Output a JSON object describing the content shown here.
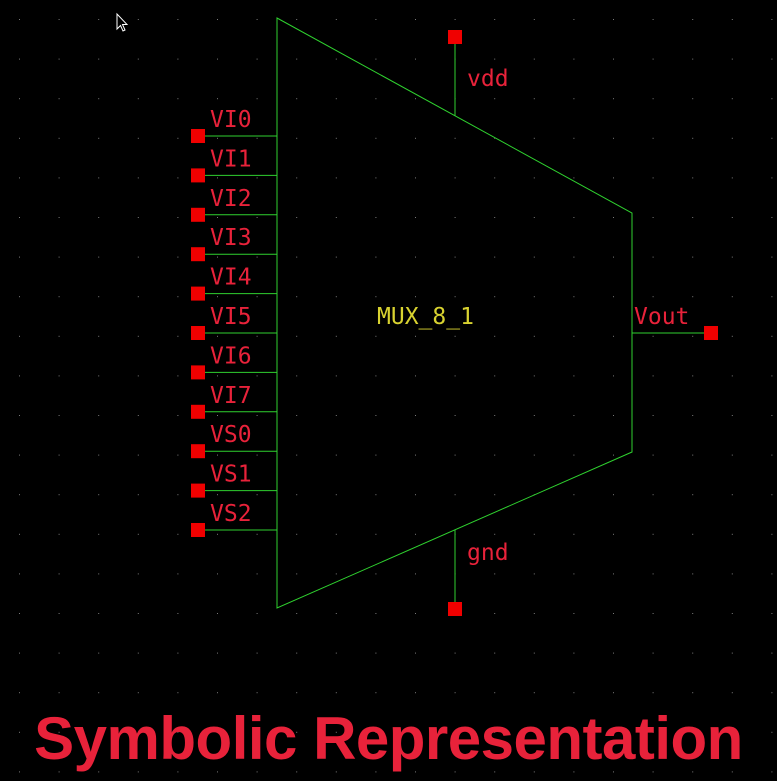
{
  "colors": {
    "background": "#000000",
    "grid_dot": "#7a7a7a",
    "wire": "#2fd12f",
    "pin": "#f00000",
    "pin_label": "#e8223a",
    "cell_name": "#d8d230",
    "caption": "#e8223a"
  },
  "cell": {
    "name": "MUX_8_1"
  },
  "power": {
    "top_label": "vdd",
    "bottom_label": "gnd"
  },
  "output": {
    "label": "Vout"
  },
  "inputs": [
    "VI0",
    "VI1",
    "VI2",
    "VI3",
    "VI4",
    "VI5",
    "VI6",
    "VI7",
    "VS0",
    "VS1",
    "VS2"
  ],
  "caption": {
    "text": "Symbolic Representation"
  },
  "cursor_icon": "arrow-cursor-icon"
}
